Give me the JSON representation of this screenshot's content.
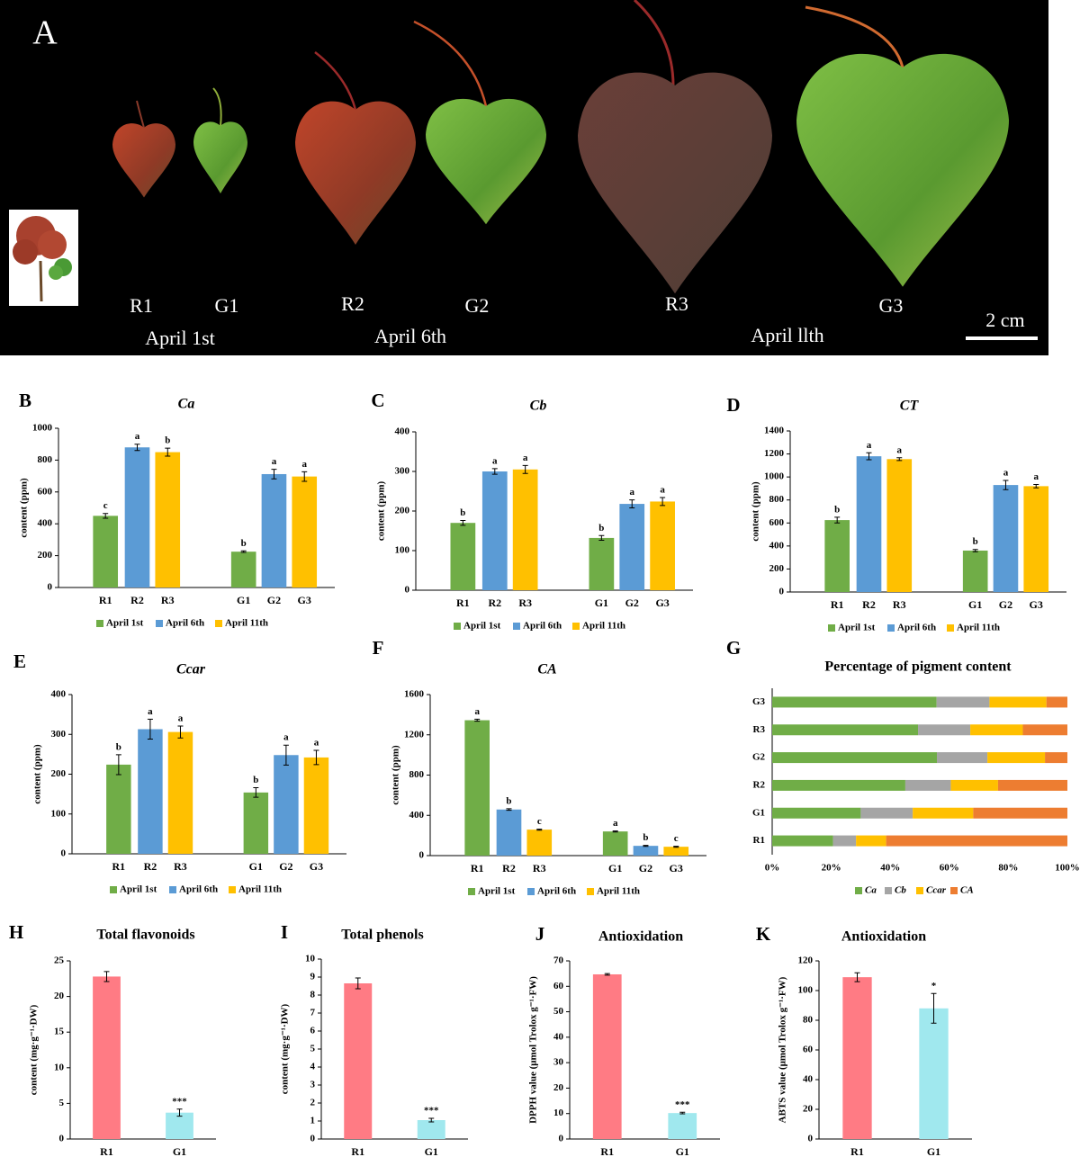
{
  "photo_panel": {
    "panel_label": "A",
    "leaf_labels": [
      "R1",
      "G1",
      "R2",
      "G2",
      "R3",
      "G3"
    ],
    "date_labels": [
      "April 1st",
      "April 6th",
      "April llth"
    ],
    "scale_bar": "2 cm"
  },
  "chart_data": [
    {
      "type": "bar",
      "panel_label": "B",
      "title": "Ca",
      "ylabel": "content (ppm)",
      "ylim": [
        0,
        1000
      ],
      "yticks": [
        0,
        200,
        400,
        600,
        800,
        1000
      ],
      "legend": "bottom",
      "categories": [
        "R1",
        "R2",
        "R3",
        "G1",
        "G2",
        "G3"
      ],
      "series": [
        {
          "name": "April 1st",
          "color": "#70ad47",
          "values": [
            450,
            null,
            null,
            225,
            null,
            null
          ],
          "errors": [
            15,
            null,
            null,
            5,
            null,
            null
          ],
          "letters": [
            "c",
            null,
            null,
            "b",
            null,
            null
          ]
        },
        {
          "name": "April 6th",
          "color": "#5b9bd5",
          "values": [
            null,
            880,
            null,
            null,
            712,
            null
          ],
          "errors": [
            null,
            20,
            null,
            null,
            30,
            null
          ],
          "letters": [
            null,
            "a",
            null,
            null,
            "a",
            null
          ]
        },
        {
          "name": "April 11th",
          "color": "#ffc000",
          "values": [
            null,
            null,
            850,
            null,
            null,
            697
          ],
          "errors": [
            null,
            null,
            25,
            null,
            null,
            30
          ],
          "letters": [
            null,
            null,
            "b",
            null,
            null,
            "a"
          ]
        }
      ]
    },
    {
      "type": "bar",
      "panel_label": "C",
      "title": "Cb",
      "ylabel": "content (ppm)",
      "ylim": [
        0,
        400
      ],
      "yticks": [
        0,
        100,
        200,
        300,
        400
      ],
      "legend": "bottom",
      "categories": [
        "R1",
        "R2",
        "R3",
        "G1",
        "G2",
        "G3"
      ],
      "series": [
        {
          "name": "April 1st",
          "color": "#70ad47",
          "values": [
            170,
            null,
            null,
            132,
            null,
            null
          ],
          "errors": [
            6,
            null,
            null,
            6,
            null,
            null
          ],
          "letters": [
            "b",
            null,
            null,
            "b",
            null,
            null
          ]
        },
        {
          "name": "April 6th",
          "color": "#5b9bd5",
          "values": [
            null,
            300,
            null,
            null,
            218,
            null
          ],
          "errors": [
            null,
            7,
            null,
            null,
            10,
            null
          ],
          "letters": [
            null,
            "a",
            null,
            null,
            "a",
            null
          ]
        },
        {
          "name": "April 11th",
          "color": "#ffc000",
          "values": [
            null,
            null,
            305,
            null,
            null,
            224
          ],
          "errors": [
            null,
            null,
            10,
            null,
            null,
            10
          ],
          "letters": [
            null,
            null,
            "a",
            null,
            null,
            "a"
          ]
        }
      ]
    },
    {
      "type": "bar",
      "panel_label": "D",
      "title": "CT",
      "ylabel": "content (ppm)",
      "ylim": [
        0,
        1400
      ],
      "yticks": [
        0,
        200,
        400,
        600,
        800,
        1000,
        1200,
        1400
      ],
      "legend": "bottom",
      "categories": [
        "R1",
        "R2",
        "R3",
        "G1",
        "G2",
        "G3"
      ],
      "series": [
        {
          "name": "April 1st",
          "color": "#70ad47",
          "values": [
            625,
            null,
            null,
            360,
            null,
            null
          ],
          "errors": [
            25,
            null,
            null,
            10,
            null,
            null
          ],
          "letters": [
            "b",
            null,
            null,
            "b",
            null,
            null
          ]
        },
        {
          "name": "April 6th",
          "color": "#5b9bd5",
          "values": [
            null,
            1180,
            null,
            null,
            930,
            null
          ],
          "errors": [
            null,
            30,
            null,
            null,
            40,
            null
          ],
          "letters": [
            null,
            "a",
            null,
            null,
            "a",
            null
          ]
        },
        {
          "name": "April 11th",
          "color": "#ffc000",
          "values": [
            null,
            null,
            1155,
            null,
            null,
            920
          ],
          "errors": [
            null,
            null,
            12,
            null,
            null,
            15
          ],
          "letters": [
            null,
            null,
            "a",
            null,
            null,
            "a"
          ]
        }
      ]
    },
    {
      "type": "bar",
      "panel_label": "E",
      "title": "Ccar",
      "ylabel": "content (ppm)",
      "ylim": [
        0,
        400
      ],
      "yticks": [
        0,
        100,
        200,
        300,
        400
      ],
      "legend": "bottom",
      "categories": [
        "R1",
        "R2",
        "R3",
        "G1",
        "G2",
        "G3"
      ],
      "series": [
        {
          "name": "April 1st",
          "color": "#70ad47",
          "values": [
            224,
            null,
            null,
            154,
            null,
            null
          ],
          "errors": [
            25,
            null,
            null,
            12,
            null,
            null
          ],
          "letters": [
            "b",
            null,
            null,
            "b",
            null,
            null
          ]
        },
        {
          "name": "April 6th",
          "color": "#5b9bd5",
          "values": [
            null,
            313,
            null,
            null,
            248,
            null
          ],
          "errors": [
            null,
            25,
            null,
            null,
            25,
            null
          ],
          "letters": [
            null,
            "a",
            null,
            null,
            "a",
            null
          ]
        },
        {
          "name": "April 11th",
          "color": "#ffc000",
          "values": [
            null,
            null,
            306,
            null,
            null,
            242
          ],
          "errors": [
            null,
            null,
            15,
            null,
            null,
            18
          ],
          "letters": [
            null,
            null,
            "a",
            null,
            null,
            "a"
          ]
        }
      ]
    },
    {
      "type": "bar",
      "panel_label": "F",
      "title": "CA",
      "ylabel": "content (ppm)",
      "ylim": [
        0,
        1600
      ],
      "yticks": [
        0,
        400,
        800,
        1200,
        1600
      ],
      "legend": "bottom",
      "categories": [
        "R1",
        "R2",
        "R3",
        "G1",
        "G2",
        "G3"
      ],
      "series": [
        {
          "name": "April 1st",
          "color": "#70ad47",
          "values": [
            1345,
            null,
            null,
            240,
            null,
            null
          ],
          "errors": [
            10,
            null,
            null,
            5,
            null,
            null
          ],
          "letters": [
            "a",
            null,
            null,
            "a",
            null,
            null
          ]
        },
        {
          "name": "April 6th",
          "color": "#5b9bd5",
          "values": [
            null,
            458,
            null,
            null,
            97,
            null
          ],
          "errors": [
            null,
            8,
            null,
            null,
            5,
            null
          ],
          "letters": [
            null,
            "b",
            null,
            null,
            "b",
            null
          ]
        },
        {
          "name": "April 11th",
          "color": "#ffc000",
          "values": [
            null,
            null,
            258,
            null,
            null,
            88
          ],
          "errors": [
            null,
            null,
            5,
            null,
            null,
            5
          ],
          "letters": [
            null,
            null,
            "c",
            null,
            null,
            "c"
          ]
        }
      ]
    },
    {
      "type": "barh",
      "panel_label": "G",
      "title": "Percentage of pigment content",
      "legend": "bottom",
      "xlim": [
        0,
        100
      ],
      "xticks": [
        {
          "value": 0,
          "label": "0%"
        },
        {
          "value": 20,
          "label": "20%"
        },
        {
          "value": 40,
          "label": "40%"
        },
        {
          "value": 60,
          "label": "60%"
        },
        {
          "value": 80,
          "label": "80%"
        },
        {
          "value": 100,
          "label": "100%"
        }
      ],
      "categories": [
        "R1",
        "G1",
        "R2",
        "G2",
        "R3",
        "G3"
      ],
      "series": [
        {
          "name": "Ca",
          "color": "#70ad47",
          "values": [
            20.6,
            30.0,
            45.1,
            55.8,
            49.4,
            55.7
          ]
        },
        {
          "name": "Cb",
          "color": "#a5a5a5",
          "values": [
            7.8,
            17.6,
            15.4,
            17.1,
            17.7,
            17.9
          ]
        },
        {
          "name": "Ccar",
          "color": "#ffc000",
          "values": [
            10.2,
            20.5,
            16.0,
            19.5,
            17.8,
            19.3
          ]
        },
        {
          "name": "CA",
          "color": "#ed7d31",
          "values": [
            61.4,
            31.9,
            23.5,
            7.6,
            15.1,
            7.1
          ]
        }
      ]
    },
    {
      "type": "bar",
      "panel_label": "H",
      "title": "Total flavonoids",
      "ylabel": "content (mg·g⁻¹·DW)",
      "ylim": [
        0,
        25
      ],
      "yticks": [
        0,
        5,
        10,
        15,
        20,
        25
      ],
      "categories": [
        "R1",
        "G1"
      ],
      "values": [
        22.8,
        3.7
      ],
      "errors": [
        0.7,
        0.5
      ],
      "colors": [
        "#ff7b84",
        "#a0e8ee"
      ],
      "significance": [
        null,
        "***"
      ]
    },
    {
      "type": "bar",
      "panel_label": "I",
      "title": "Total phenols",
      "ylabel": "content (mg·g⁻¹·DW)",
      "ylim": [
        0,
        10
      ],
      "yticks": [
        0,
        1,
        2,
        3,
        4,
        5,
        6,
        7,
        8,
        9,
        10
      ],
      "categories": [
        "R1",
        "G1"
      ],
      "values": [
        8.65,
        1.05
      ],
      "errors": [
        0.3,
        0.1
      ],
      "colors": [
        "#ff7b84",
        "#a0e8ee"
      ],
      "significance": [
        null,
        "***"
      ]
    },
    {
      "type": "bar",
      "panel_label": "J",
      "title": "Antioxidation",
      "ylabel": "DPPH value (μmol Trolox g⁻¹·FW)",
      "ylim": [
        0,
        70
      ],
      "yticks": [
        0,
        10,
        20,
        30,
        40,
        50,
        60,
        70
      ],
      "categories": [
        "R1",
        "G1"
      ],
      "values": [
        64.7,
        10.2
      ],
      "errors": [
        0.3,
        0.3
      ],
      "colors": [
        "#ff7b84",
        "#a0e8ee"
      ],
      "significance": [
        null,
        "***"
      ]
    },
    {
      "type": "bar",
      "panel_label": "K",
      "title": "Antioxidation",
      "ylabel": "ABTS value (μmol Trolox g⁻¹·FW)",
      "ylim": [
        0,
        120
      ],
      "yticks": [
        0,
        20,
        40,
        60,
        80,
        100,
        120
      ],
      "categories": [
        "R1",
        "G1"
      ],
      "values": [
        109,
        88
      ],
      "errors": [
        3,
        10
      ],
      "colors": [
        "#ff7b84",
        "#a0e8ee"
      ],
      "significance": [
        null,
        "*"
      ]
    }
  ]
}
